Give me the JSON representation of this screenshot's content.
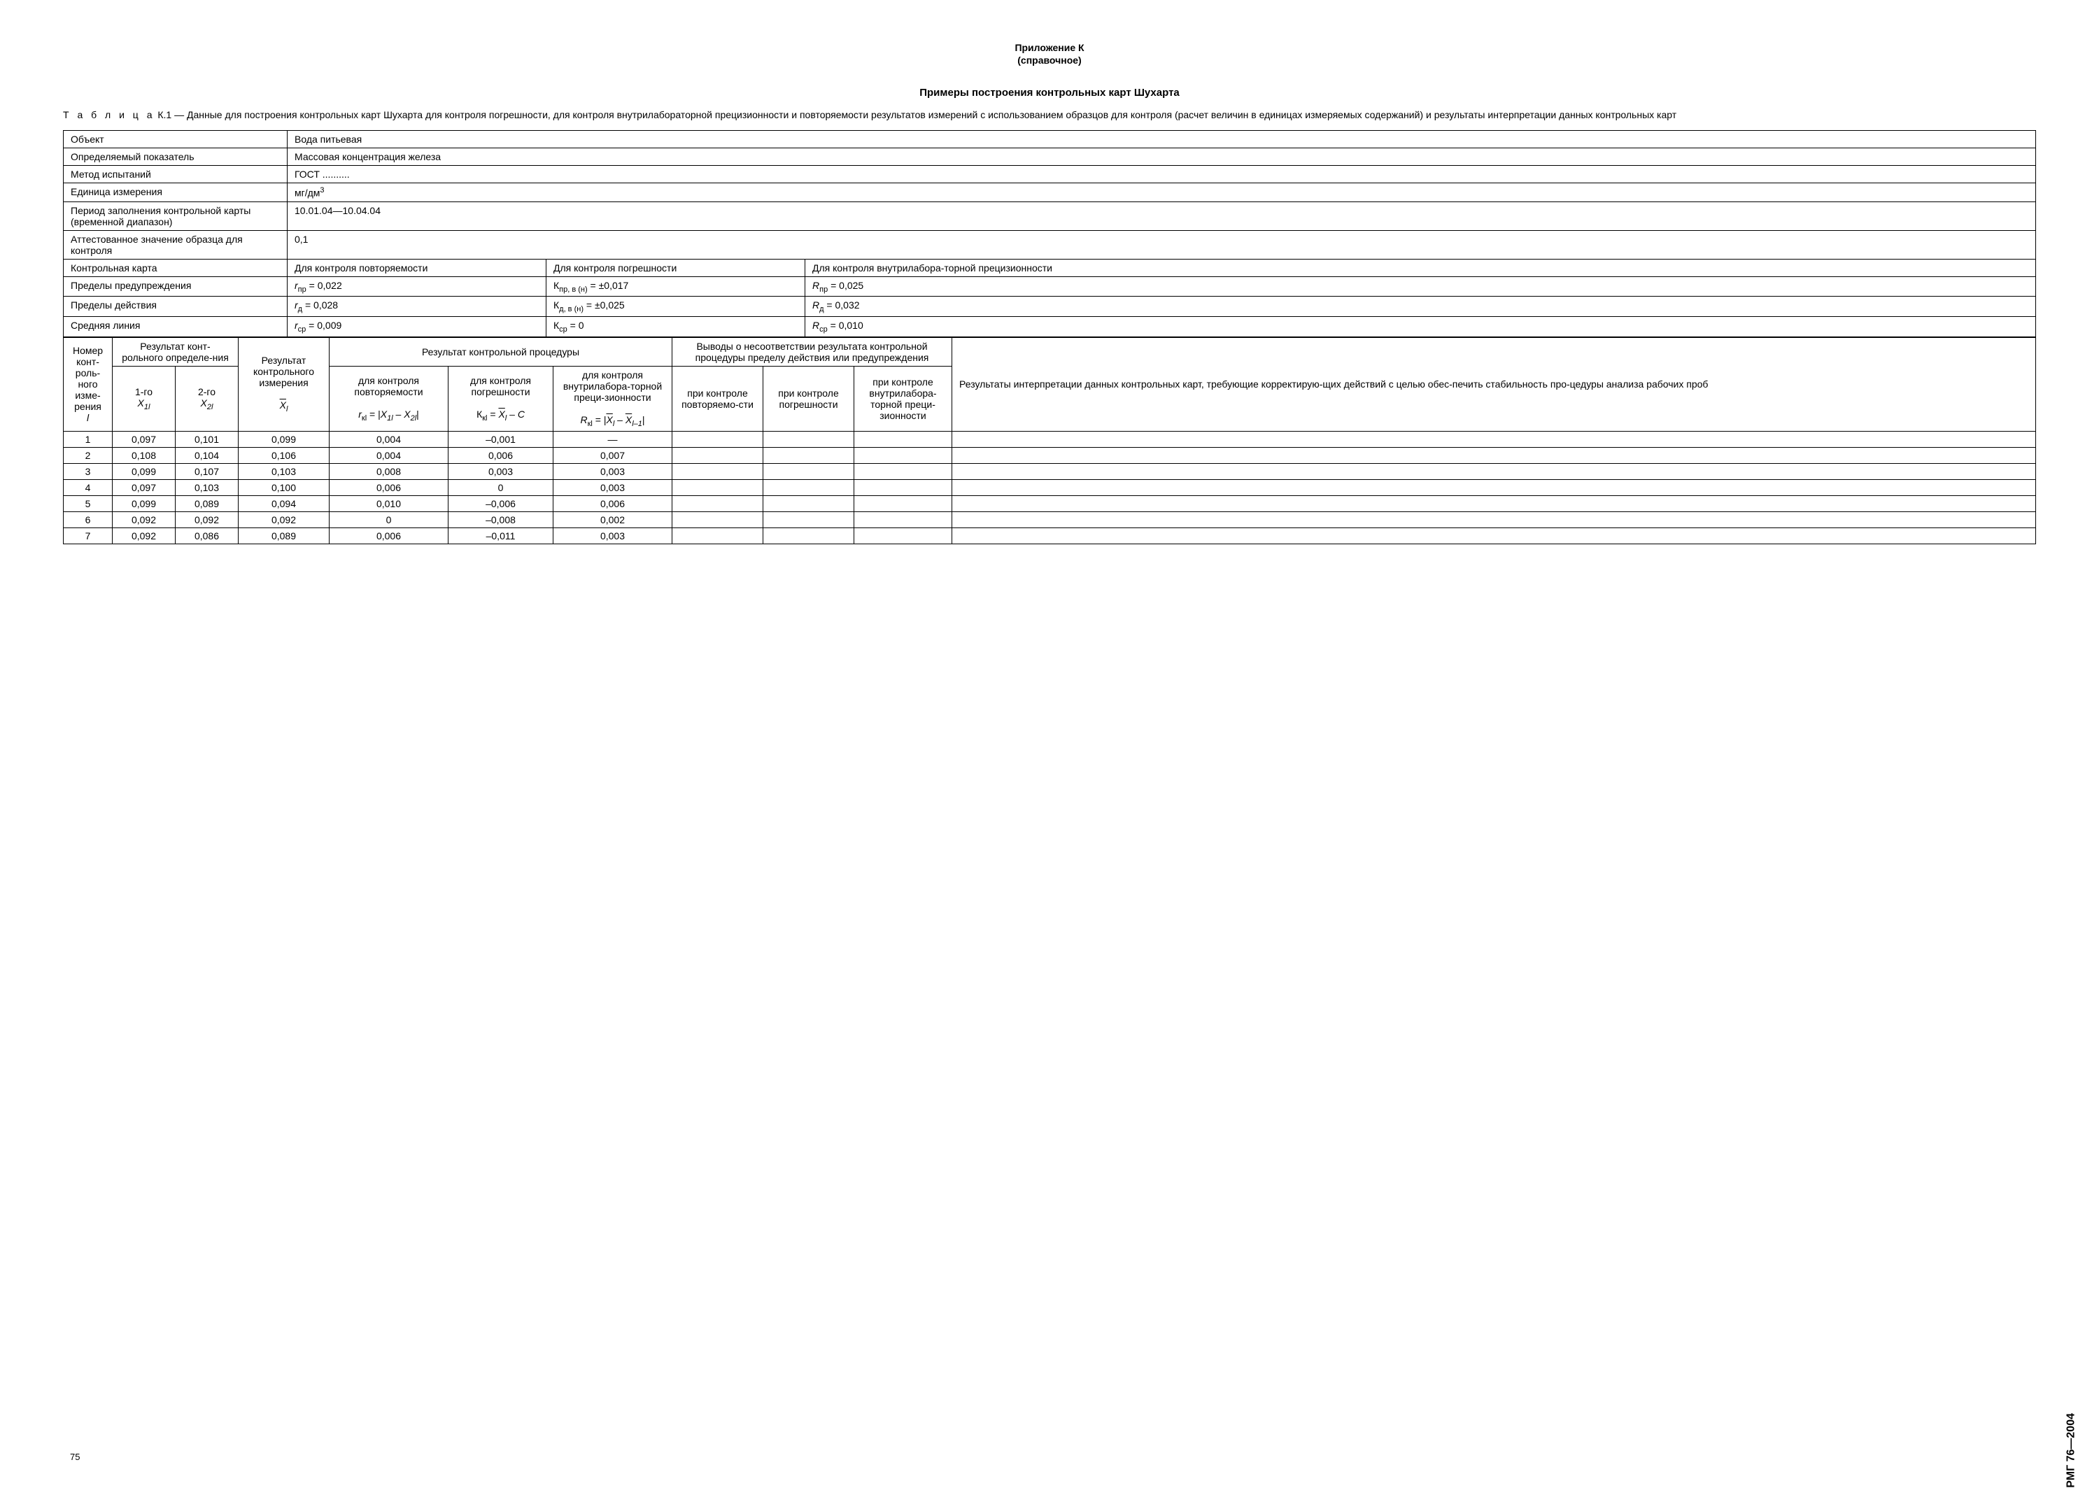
{
  "header": {
    "line1": "Приложение К",
    "line2": "(справочное)"
  },
  "title": "Примеры построения контрольных карт Шухарта",
  "caption_prefix": "Т а б л и ц а",
  "caption_num": "К.1",
  "caption_text": " — Данные для построения контрольных карт Шухарта для контроля погрешности, для контроля внутрилабораторной прецизионности и повторяемости результатов измерений с использованием образцов для контроля (расчет величин в единицах измеряемых содержаний) и результаты интерпретации данных контрольных карт",
  "meta": {
    "object_label": "Объект",
    "object_value": "Вода питьевая",
    "indicator_label": "Определяемый показатель",
    "indicator_value": "Массовая концентрация железа",
    "method_label": "Метод испытаний",
    "method_value": "ГОСТ ..........",
    "unit_label": "Единица измерения",
    "unit_value_pre": "мг/дм",
    "unit_value_sup": "3",
    "period_label": "Период заполнения контрольной карты (временной диапазон)",
    "period_value": "10.01.04—10.04.04",
    "certified_label": "Аттестованное значение образца для контроля",
    "certified_value": "0,1"
  },
  "control_card": {
    "label": "Контрольная карта",
    "c1": "Для контроля повторяемости",
    "c2": "Для контроля погрешности",
    "c3": "Для контроля внутрилабора-торной прецизионности"
  },
  "warning": {
    "label": "Пределы предупреждения",
    "v1_sym": "r",
    "v1_sub": "пр",
    "v1_val": " = 0,022",
    "v2_sym": "К",
    "v2_sub": "пр, в (н)",
    "v2_val": " = ±0,017",
    "v3_sym": "R",
    "v3_sub": "пр",
    "v3_val": " = 0,025"
  },
  "action": {
    "label": "Пределы действия",
    "v1_sym": "r",
    "v1_sub": "д",
    "v1_val": " = 0,028",
    "v2_sym": "К",
    "v2_sub": "д, в (н)",
    "v2_val": " = ±0,025",
    "v3_sym": "R",
    "v3_sub": "д",
    "v3_val": " = 0,032"
  },
  "midline": {
    "label": "Средняя линия",
    "v1_sym": "r",
    "v1_sub": "ср",
    "v1_val": " = 0,009",
    "v2_sym": "К",
    "v2_sub": "ср",
    "v2_val": " = 0",
    "v3_sym": "R",
    "v3_sub": "ср",
    "v3_val": " = 0,010"
  },
  "headers": {
    "col_num": "Номер конт-роль-ного изме-рения",
    "col_num_sym": "l",
    "col_result_det": "Результат конт-рольного определе-ния",
    "col_1": "1-го",
    "col_1_sym": "X",
    "col_1_sub": "1l",
    "col_2": "2-го",
    "col_2_sym": "X",
    "col_2_sub": "2l",
    "col_result_ctrl": "Результат контрольного измерения",
    "col_result_ctrl_sym": "X",
    "col_result_ctrl_sub": "l",
    "col_proc": "Результат контрольной процедуры",
    "sub1_t": "для контроля повторяемости",
    "sub1_f_pre": "r",
    "sub1_f_sub": "кl",
    "sub1_f_eq": " = |",
    "sub1_f_x1": "X",
    "sub1_f_x1s": "1l",
    "sub1_f_mid": " – ",
    "sub1_f_x2": "X",
    "sub1_f_x2s": "2l",
    "sub1_f_end": "|",
    "sub2_t": "для контроля погрешности",
    "sub2_f_pre": "К",
    "sub2_f_sub": "кl",
    "sub2_f_eq": " = ",
    "sub2_f_x": "X",
    "sub2_f_xs": "l",
    "sub2_f_end": " – C",
    "sub3_t": "для контроля внутрилабора-торной преци-зионности",
    "sub3_f_pre": "R",
    "sub3_f_sub": "кl",
    "sub3_f_eq": " = |",
    "sub3_f_x1": "X",
    "sub3_f_x1s": "l",
    "sub3_f_mid": " – ",
    "sub3_f_x2": "X",
    "sub3_f_x2s": "l–1",
    "sub3_f_end": "|",
    "col_concl": "Выводы о несоответствии результата контрольной процедуры пределу действия или предупреждения",
    "concl1": "при контроле повторяемо-сти",
    "concl2": "при контроле погрешности",
    "concl3": "при контроле внутрилабора-торной преци-зионности",
    "col_interp": "Результаты интерпретации данных контрольных карт, требующие корректирую-щих действий с целью обес-печить стабильность про-цедуры анализа рабочих проб"
  },
  "data_rows": [
    {
      "n": "1",
      "x1": "0,097",
      "x2": "0,101",
      "xbar": "0,099",
      "r": "0,004",
      "k": "–0,001",
      "R": "—"
    },
    {
      "n": "2",
      "x1": "0,108",
      "x2": "0,104",
      "xbar": "0,106",
      "r": "0,004",
      "k": "0,006",
      "R": "0,007"
    },
    {
      "n": "3",
      "x1": "0,099",
      "x2": "0,107",
      "xbar": "0,103",
      "r": "0,008",
      "k": "0,003",
      "R": "0,003"
    },
    {
      "n": "4",
      "x1": "0,097",
      "x2": "0,103",
      "xbar": "0,100",
      "r": "0,006",
      "k": "0",
      "R": "0,003"
    },
    {
      "n": "5",
      "x1": "0,099",
      "x2": "0,089",
      "xbar": "0,094",
      "r": "0,010",
      "k": "–0,006",
      "R": "0,006"
    },
    {
      "n": "6",
      "x1": "0,092",
      "x2": "0,092",
      "xbar": "0,092",
      "r": "0",
      "k": "–0,008",
      "R": "0,002"
    },
    {
      "n": "7",
      "x1": "0,092",
      "x2": "0,086",
      "xbar": "0,089",
      "r": "0,006",
      "k": "–0,011",
      "R": "0,003"
    }
  ],
  "side_label": "РМГ 76—2004",
  "page_num": "75"
}
